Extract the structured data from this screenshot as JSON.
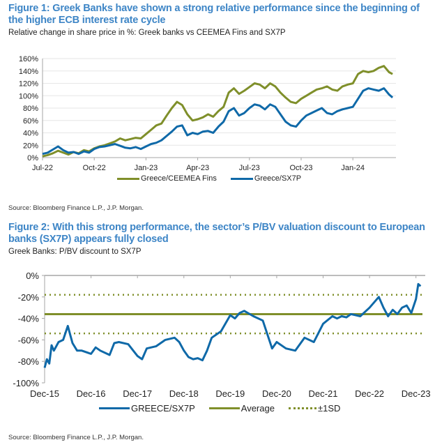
{
  "figure1": {
    "title": "Figure 1: Greek Banks have shown a strong relative performance since the beginning of the higher ECB interest rate cycle",
    "subtitle": "Relative change in share price in %: Greek banks vs CEEMEA Fins and SX7P",
    "source": "Source: Bloomberg Finance L.P., J.P. Morgan."
  },
  "figure2": {
    "title": "Figure 2: With this strong performance, the sector’s P/BV valuation discount to European banks (SX7P) appears fully closed",
    "subtitle": "Greek Banks: P/BV discount to SX7P",
    "source": "Source: Bloomberg Finance L.P., J.P. Morgan."
  },
  "colors": {
    "title": "#3d85c6",
    "olive": "#7f8f2a",
    "blue": "#0f69a8",
    "grid": "#e6e6e6",
    "axis": "#a6a6a6"
  },
  "chart_data": [
    {
      "type": "line",
      "title": "Relative change in share price in %: Greek banks vs CEEMEA Fins and SX7P",
      "xlabel": "",
      "ylabel": "",
      "ylim": [
        0,
        160
      ],
      "yticks": [
        0,
        20,
        40,
        60,
        80,
        100,
        120,
        140,
        160
      ],
      "ytick_labels": [
        "0%",
        "20%",
        "40%",
        "60%",
        "80%",
        "100%",
        "120%",
        "140%",
        "160%"
      ],
      "xlim": [
        0,
        20.5
      ],
      "xticks": [
        0,
        3,
        6,
        9,
        12,
        15,
        18
      ],
      "xtick_labels": [
        "Jul-22",
        "Oct-22",
        "Jan-23",
        "Apr-23",
        "Jul-23",
        "Oct-23",
        "Jan-24"
      ],
      "x_unit": "months since Jul-22",
      "grid": true,
      "legend_position": "bottom",
      "series": [
        {
          "name": "Greece/CEEMEA Fins",
          "color": "#7f8f2a",
          "x": [
            0,
            0.3,
            0.6,
            0.9,
            1.2,
            1.5,
            1.8,
            2.1,
            2.4,
            2.7,
            3.0,
            3.3,
            3.6,
            3.9,
            4.2,
            4.5,
            4.8,
            5.1,
            5.4,
            5.7,
            6.0,
            6.3,
            6.6,
            6.9,
            7.2,
            7.5,
            7.8,
            8.1,
            8.4,
            8.7,
            9.0,
            9.3,
            9.6,
            9.9,
            10.2,
            10.5,
            10.8,
            11.1,
            11.4,
            11.7,
            12.0,
            12.3,
            12.6,
            12.9,
            13.2,
            13.5,
            13.8,
            14.1,
            14.4,
            14.7,
            15.0,
            15.3,
            15.6,
            15.9,
            16.2,
            16.5,
            16.8,
            17.1,
            17.4,
            17.7,
            18.0,
            18.3,
            18.6,
            18.9,
            19.2,
            19.5,
            19.8,
            20.1,
            20.3
          ],
          "values": [
            2,
            4,
            7,
            11,
            8,
            5,
            9,
            7,
            12,
            10,
            15,
            18,
            20,
            23,
            26,
            31,
            28,
            30,
            32,
            31,
            38,
            45,
            52,
            55,
            68,
            80,
            90,
            85,
            70,
            60,
            62,
            65,
            70,
            66,
            75,
            82,
            105,
            112,
            103,
            108,
            114,
            120,
            118,
            112,
            120,
            115,
            105,
            97,
            90,
            88,
            95,
            100,
            105,
            110,
            112,
            115,
            110,
            108,
            115,
            118,
            120,
            135,
            140,
            138,
            140,
            145,
            148,
            138,
            135
          ]
        },
        {
          "name": "Greece/SX7P",
          "color": "#0f69a8",
          "x": [
            0,
            0.3,
            0.6,
            0.9,
            1.2,
            1.5,
            1.8,
            2.1,
            2.4,
            2.7,
            3.0,
            3.3,
            3.6,
            3.9,
            4.2,
            4.5,
            4.8,
            5.1,
            5.4,
            5.7,
            6.0,
            6.3,
            6.6,
            6.9,
            7.2,
            7.5,
            7.8,
            8.1,
            8.4,
            8.7,
            9.0,
            9.3,
            9.6,
            9.9,
            10.2,
            10.5,
            10.8,
            11.1,
            11.4,
            11.7,
            12.0,
            12.3,
            12.6,
            12.9,
            13.2,
            13.5,
            13.8,
            14.1,
            14.4,
            14.7,
            15.0,
            15.3,
            15.6,
            15.9,
            16.2,
            16.5,
            16.8,
            17.1,
            17.4,
            17.7,
            18.0,
            18.3,
            18.6,
            18.9,
            19.2,
            19.5,
            19.8,
            20.1,
            20.3
          ],
          "values": [
            6,
            8,
            13,
            18,
            12,
            8,
            9,
            6,
            10,
            8,
            14,
            17,
            18,
            20,
            22,
            19,
            16,
            15,
            17,
            14,
            18,
            22,
            24,
            28,
            35,
            42,
            50,
            52,
            36,
            40,
            38,
            42,
            43,
            40,
            50,
            58,
            75,
            80,
            68,
            72,
            80,
            86,
            84,
            78,
            86,
            82,
            70,
            58,
            52,
            50,
            60,
            68,
            72,
            76,
            80,
            72,
            70,
            75,
            78,
            80,
            82,
            95,
            108,
            112,
            110,
            108,
            112,
            102,
            97
          ]
        }
      ]
    },
    {
      "type": "line",
      "title": "Greek Banks: P/BV discount to SX7P",
      "xlabel": "",
      "ylabel": "",
      "ylim": [
        -100,
        0
      ],
      "yticks": [
        -100,
        -80,
        -60,
        -40,
        -20,
        0
      ],
      "ytick_labels": [
        "-100%",
        "-80%",
        "-60%",
        "-40%",
        "-20%",
        "0%"
      ],
      "xlim": [
        0,
        8.2
      ],
      "xticks": [
        0,
        1,
        2,
        3,
        4,
        5,
        6,
        7,
        8
      ],
      "xtick_labels": [
        "Dec-15",
        "Dec-16",
        "Dec-17",
        "Dec-18",
        "Dec-19",
        "Dec-20",
        "Dec-21",
        "Dec-22",
        "Dec-23"
      ],
      "x_unit": "years since Dec-15",
      "grid": false,
      "legend_position": "bottom",
      "reference_lines": [
        {
          "name": "Average",
          "value": -36,
          "color": "#7f8f2a",
          "style": "solid"
        },
        {
          "name": "+1SD",
          "value": -18,
          "color": "#7f8f2a",
          "style": "dotted"
        },
        {
          "name": "-1SD",
          "value": -54,
          "color": "#7f8f2a",
          "style": "dotted"
        }
      ],
      "legend": [
        "GREECE/SX7P",
        "Average",
        "±1SD"
      ],
      "series": [
        {
          "name": "GREECE/SX7P",
          "color": "#0f69a8",
          "x": [
            0,
            0.05,
            0.1,
            0.15,
            0.2,
            0.3,
            0.4,
            0.5,
            0.55,
            0.6,
            0.7,
            0.8,
            1.0,
            1.1,
            1.2,
            1.4,
            1.5,
            1.6,
            1.8,
            2.0,
            2.1,
            2.2,
            2.4,
            2.6,
            2.8,
            2.9,
            3.0,
            3.1,
            3.2,
            3.3,
            3.4,
            3.5,
            3.6,
            3.8,
            4.0,
            4.1,
            4.2,
            4.3,
            4.5,
            4.7,
            4.9,
            5.0,
            5.2,
            5.4,
            5.6,
            5.8,
            6.0,
            6.2,
            6.3,
            6.4,
            6.5,
            6.6,
            6.8,
            7.0,
            7.2,
            7.3,
            7.4,
            7.5,
            7.6,
            7.7,
            7.8,
            7.9,
            8.0,
            8.05,
            8.1
          ],
          "values": [
            -86,
            -78,
            -82,
            -65,
            -70,
            -62,
            -60,
            -47,
            -55,
            -63,
            -70,
            -70,
            -73,
            -67,
            -70,
            -74,
            -63,
            -62,
            -64,
            -75,
            -78,
            -68,
            -66,
            -60,
            -58,
            -62,
            -70,
            -76,
            -78,
            -77,
            -79,
            -70,
            -58,
            -52,
            -37,
            -40,
            -35,
            -33,
            -38,
            -42,
            -68,
            -62,
            -68,
            -70,
            -58,
            -62,
            -45,
            -38,
            -40,
            -38,
            -39,
            -36,
            -38,
            -30,
            -20,
            -30,
            -38,
            -32,
            -36,
            -30,
            -28,
            -35,
            -22,
            -8,
            -10
          ]
        }
      ]
    }
  ]
}
